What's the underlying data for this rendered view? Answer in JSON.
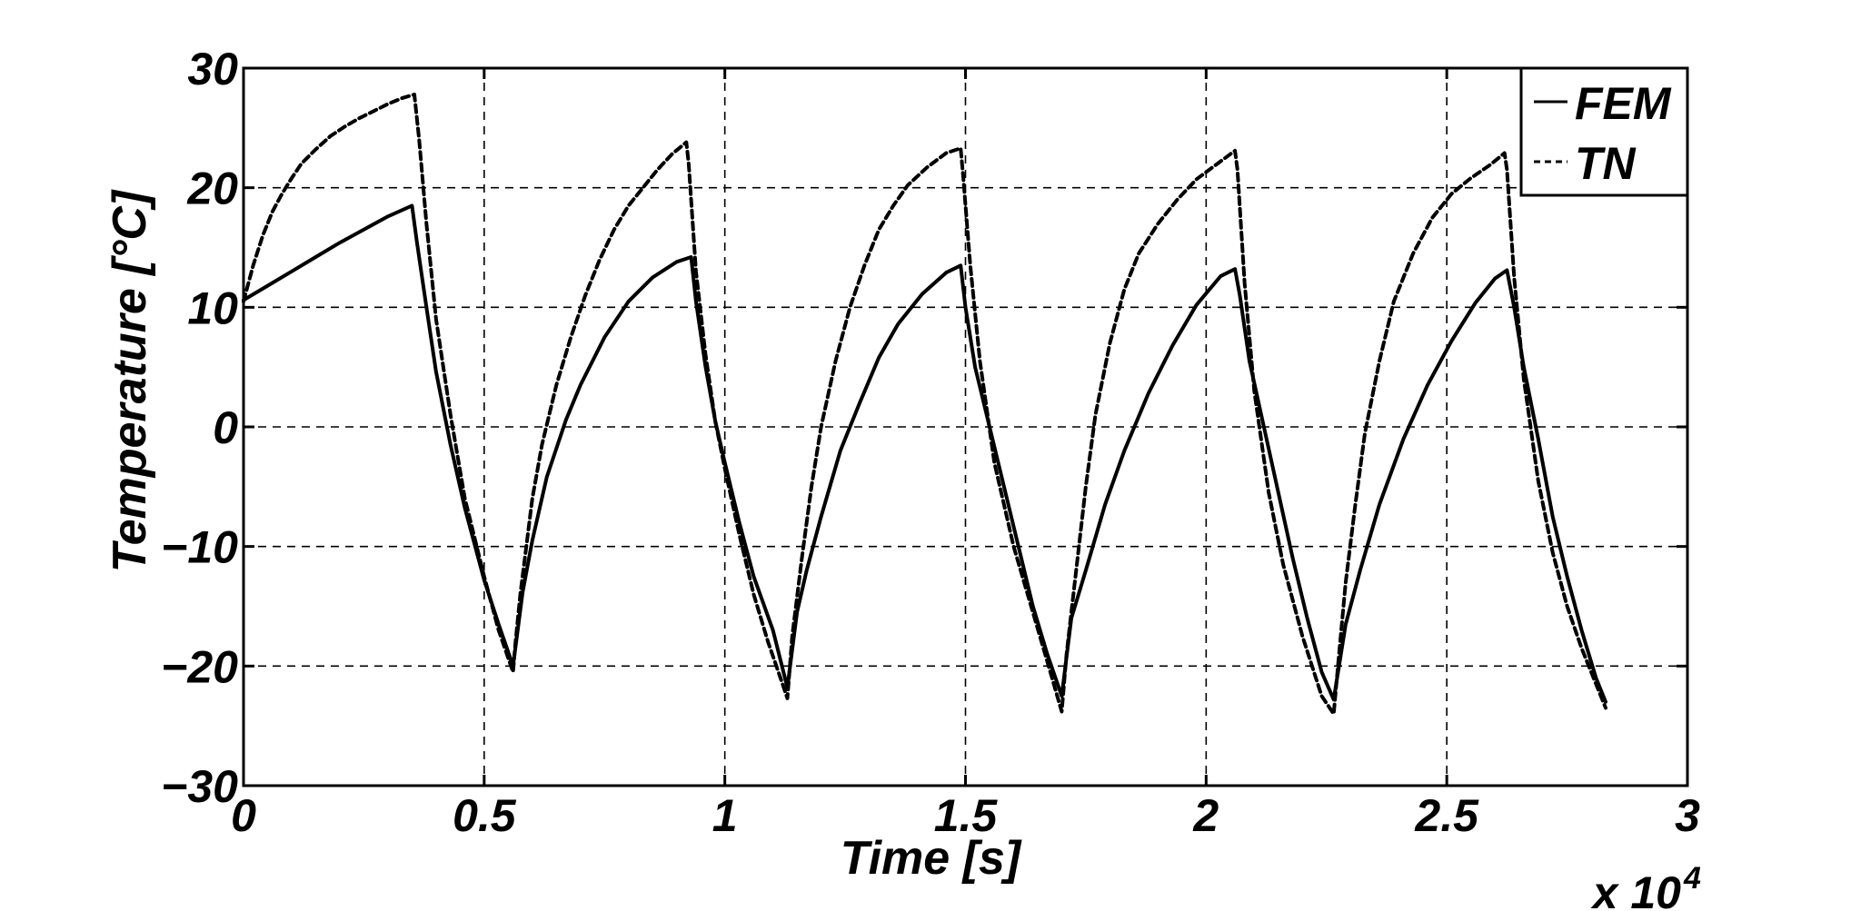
{
  "chart_data": {
    "type": "line",
    "title": "",
    "xlabel": "Time [s]",
    "ylabel": "Temperature [°C]",
    "x_multiplier_text": "x 10",
    "x_multiplier_exponent": "4",
    "xlim": [
      0,
      3
    ],
    "ylim": [
      -30,
      30
    ],
    "xticks": [
      0,
      0.5,
      1,
      1.5,
      2,
      2.5,
      3
    ],
    "xtick_labels": [
      "0",
      "0.5",
      "1",
      "1.5",
      "2",
      "2.5",
      "3"
    ],
    "yticks": [
      -30,
      -20,
      -10,
      0,
      10,
      20,
      30
    ],
    "ytick_labels": [
      "−30",
      "−20",
      "−10",
      "0",
      "10",
      "20",
      "30"
    ],
    "grid": true,
    "legend_position": "top-right",
    "series": [
      {
        "name": "FEM",
        "style": "solid",
        "color": "#000000",
        "x": [
          0,
          0.05,
          0.1,
          0.15,
          0.2,
          0.25,
          0.3,
          0.35,
          0.36,
          0.38,
          0.4,
          0.43,
          0.46,
          0.5,
          0.53,
          0.56,
          0.58,
          0.6,
          0.63,
          0.67,
          0.7,
          0.75,
          0.8,
          0.85,
          0.9,
          0.93,
          0.94,
          0.96,
          0.98,
          1.0,
          1.03,
          1.06,
          1.1,
          1.13,
          1.15,
          1.17,
          1.2,
          1.24,
          1.28,
          1.32,
          1.36,
          1.41,
          1.46,
          1.49,
          1.5,
          1.52,
          1.55,
          1.58,
          1.61,
          1.64,
          1.67,
          1.7,
          1.72,
          1.75,
          1.79,
          1.83,
          1.88,
          1.93,
          1.98,
          2.03,
          2.06,
          2.07,
          2.09,
          2.12,
          2.15,
          2.18,
          2.21,
          2.24,
          2.265,
          2.29,
          2.32,
          2.36,
          2.41,
          2.46,
          2.51,
          2.56,
          2.6,
          2.625,
          2.64,
          2.66,
          2.69,
          2.72,
          2.75,
          2.78,
          2.81,
          2.83
        ],
        "y": [
          10.6,
          11.8,
          13.0,
          14.2,
          15.4,
          16.5,
          17.6,
          18.5,
          15.5,
          10.0,
          4.6,
          -1.5,
          -6.8,
          -12.8,
          -16.5,
          -20.0,
          -13.8,
          -9.5,
          -4.2,
          0.6,
          3.5,
          7.5,
          10.5,
          12.5,
          13.8,
          14.2,
          10.5,
          5.0,
          0.5,
          -3.0,
          -8.0,
          -12.5,
          -17.0,
          -21.8,
          -15.5,
          -12.0,
          -7.5,
          -2.0,
          2.0,
          5.8,
          8.6,
          11.1,
          12.9,
          13.5,
          10.0,
          5.0,
          0.0,
          -5.0,
          -10.0,
          -15.0,
          -19.0,
          -22.5,
          -16.0,
          -12.0,
          -6.5,
          -2.0,
          2.8,
          6.8,
          10.2,
          12.6,
          13.2,
          11.0,
          5.5,
          0.0,
          -5.5,
          -11.0,
          -16.0,
          -20.5,
          -22.8,
          -16.5,
          -12.0,
          -6.5,
          -1.0,
          3.5,
          7.2,
          10.4,
          12.4,
          13.1,
          10.0,
          5.0,
          -1.0,
          -7.5,
          -12.5,
          -17.0,
          -21.0,
          -23.0
        ]
      },
      {
        "name": "TN",
        "style": "dashed",
        "color": "#000000",
        "x": [
          0,
          0.02,
          0.04,
          0.06,
          0.08,
          0.1,
          0.12,
          0.15,
          0.18,
          0.21,
          0.24,
          0.27,
          0.3,
          0.33,
          0.355,
          0.365,
          0.38,
          0.4,
          0.43,
          0.46,
          0.5,
          0.53,
          0.56,
          0.565,
          0.575,
          0.6,
          0.62,
          0.65,
          0.68,
          0.71,
          0.74,
          0.77,
          0.8,
          0.83,
          0.86,
          0.89,
          0.92,
          0.925,
          0.94,
          0.96,
          0.98,
          1.0,
          1.03,
          1.06,
          1.09,
          1.12,
          1.13,
          1.14,
          1.16,
          1.18,
          1.2,
          1.23,
          1.26,
          1.29,
          1.32,
          1.35,
          1.38,
          1.42,
          1.46,
          1.49,
          1.495,
          1.51,
          1.53,
          1.56,
          1.6,
          1.64,
          1.68,
          1.7,
          1.71,
          1.73,
          1.75,
          1.77,
          1.8,
          1.83,
          1.86,
          1.9,
          1.94,
          1.98,
          2.02,
          2.06,
          2.065,
          2.08,
          2.1,
          2.13,
          2.16,
          2.2,
          2.24,
          2.265,
          2.275,
          2.29,
          2.31,
          2.33,
          2.36,
          2.39,
          2.43,
          2.47,
          2.51,
          2.55,
          2.59,
          2.62,
          2.625,
          2.64,
          2.66,
          2.69,
          2.72,
          2.75,
          2.78,
          2.81,
          2.83
        ],
        "y": [
          10.5,
          13.5,
          16.0,
          18.0,
          19.5,
          20.8,
          22.0,
          23.2,
          24.3,
          25.1,
          25.8,
          26.4,
          27.0,
          27.5,
          27.8,
          24.0,
          17.0,
          9.0,
          1.0,
          -6.0,
          -12.5,
          -17.0,
          -20.5,
          -18.0,
          -14.0,
          -6.0,
          -1.5,
          3.5,
          7.5,
          11.0,
          14.0,
          16.5,
          18.5,
          20.0,
          21.5,
          22.8,
          23.8,
          22.0,
          13.0,
          6.0,
          0.5,
          -3.5,
          -9.0,
          -14.0,
          -18.0,
          -21.5,
          -22.7,
          -17.5,
          -11.0,
          -5.0,
          0.0,
          5.5,
          10.0,
          13.5,
          16.5,
          18.5,
          20.2,
          21.7,
          22.9,
          23.3,
          21.0,
          13.5,
          5.5,
          -3.0,
          -10.0,
          -15.5,
          -21.0,
          -23.8,
          -19.0,
          -12.0,
          -5.0,
          1.0,
          7.0,
          11.5,
          14.5,
          17.0,
          19.0,
          20.7,
          21.9,
          23.1,
          21.5,
          12.0,
          3.0,
          -5.5,
          -11.5,
          -17.5,
          -22.5,
          -24.0,
          -19.5,
          -13.0,
          -6.5,
          -0.5,
          5.5,
          10.5,
          14.5,
          17.5,
          19.5,
          20.8,
          21.9,
          22.9,
          21.5,
          12.5,
          4.0,
          -4.5,
          -10.5,
          -15.0,
          -18.5,
          -21.5,
          -23.5
        ]
      }
    ]
  }
}
